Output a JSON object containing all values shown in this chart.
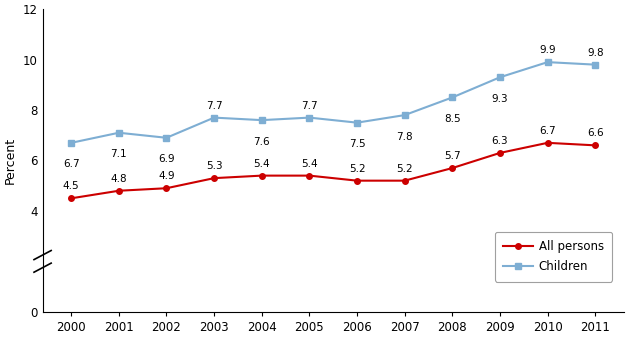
{
  "years": [
    2000,
    2001,
    2002,
    2003,
    2004,
    2005,
    2006,
    2007,
    2008,
    2009,
    2010,
    2011
  ],
  "all_persons": [
    4.5,
    4.8,
    4.9,
    5.3,
    5.4,
    5.4,
    5.2,
    5.2,
    5.7,
    6.3,
    6.7,
    6.6
  ],
  "children": [
    6.7,
    7.1,
    6.9,
    7.7,
    7.6,
    7.7,
    7.5,
    7.8,
    8.5,
    9.3,
    9.9,
    9.8
  ],
  "all_persons_color": "#cc0000",
  "children_color": "#7eaed3",
  "ylabel": "Percent",
  "ylim": [
    0,
    12
  ],
  "yticks": [
    0,
    4,
    6,
    8,
    10,
    12
  ],
  "legend_labels": [
    "All persons",
    "Children"
  ],
  "persons_annot_above": [
    true,
    true,
    true,
    true,
    true,
    true,
    true,
    true,
    true,
    true,
    true,
    true
  ],
  "children_annot_above": [
    false,
    false,
    false,
    true,
    false,
    true,
    false,
    false,
    false,
    false,
    true,
    true
  ]
}
